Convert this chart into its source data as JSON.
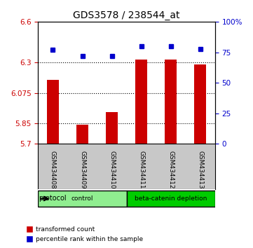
{
  "title": "GDS3578 / 238544_at",
  "samples": [
    "GSM434408",
    "GSM434409",
    "GSM434410",
    "GSM434411",
    "GSM434412",
    "GSM434413"
  ],
  "transformed_count": [
    6.17,
    5.84,
    5.935,
    6.32,
    6.32,
    6.285
  ],
  "percentile_rank": [
    77,
    72,
    72,
    80,
    80,
    78
  ],
  "ylim_left": [
    5.7,
    6.6
  ],
  "ylim_right": [
    0,
    100
  ],
  "yticks_left": [
    5.7,
    5.85,
    6.075,
    6.3,
    6.6
  ],
  "yticks_right": [
    0,
    25,
    50,
    75,
    100
  ],
  "ytick_labels_left": [
    "5.7",
    "5.85",
    "6.075",
    "6.3",
    "6.6"
  ],
  "ytick_labels_right": [
    "0",
    "25",
    "50",
    "75",
    "100%"
  ],
  "hlines": [
    5.85,
    6.075,
    6.3
  ],
  "groups": [
    {
      "label": "control",
      "indices": [
        0,
        1,
        2
      ],
      "color": "#90EE90"
    },
    {
      "label": "beta-catenin depletion",
      "indices": [
        3,
        4,
        5
      ],
      "color": "#00CC00"
    }
  ],
  "protocol_label": "protocol",
  "bar_color": "#CC0000",
  "dot_color": "#0000CC",
  "bar_width": 0.4,
  "background_color": "#ffffff",
  "sample_bg_color": "#C8C8C8",
  "legend_items": [
    "transformed count",
    "percentile rank within the sample"
  ]
}
